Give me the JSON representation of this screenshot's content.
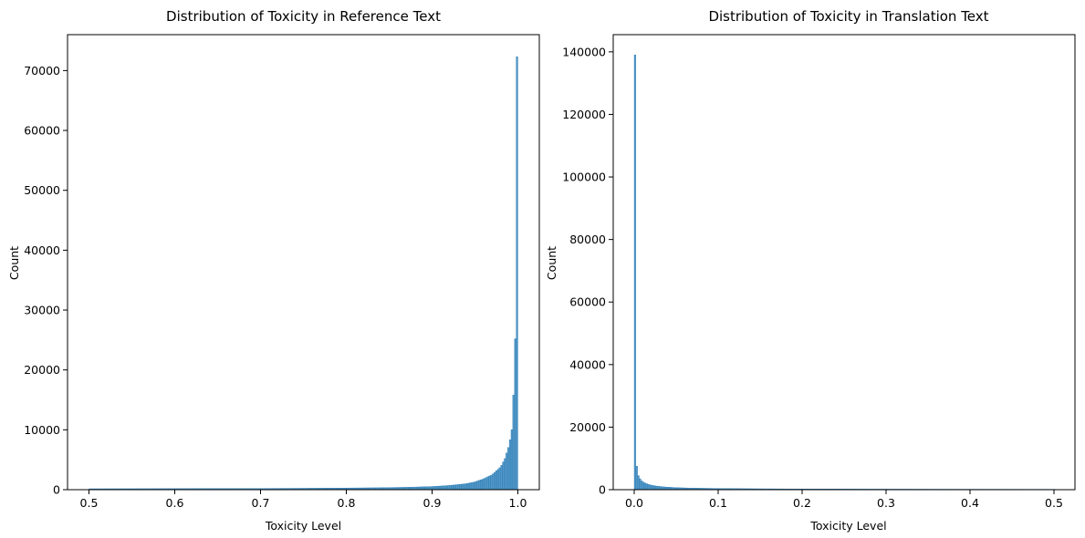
{
  "chart_data": [
    {
      "type": "bar",
      "subtype": "histogram",
      "title": "Distribution of Toxicity in Reference Text",
      "xlabel": "Toxicity Level",
      "ylabel": "Count",
      "xlim": [
        0.475,
        1.025
      ],
      "ylim": [
        0,
        76000
      ],
      "xticks": [
        0.5,
        0.6,
        0.7,
        0.8,
        0.9,
        1.0
      ],
      "xtick_labels": [
        "0.5",
        "0.6",
        "0.7",
        "0.8",
        "0.9",
        "1.0"
      ],
      "yticks": [
        0,
        10000,
        20000,
        30000,
        40000,
        50000,
        60000,
        70000
      ],
      "ytick_labels": [
        "0",
        "10000",
        "20000",
        "30000",
        "40000",
        "50000",
        "60000",
        "70000"
      ],
      "grid": false,
      "color": "#1f77b4",
      "bin_width": 0.002,
      "bins": [
        {
          "x": 0.5,
          "count": 150
        },
        {
          "x": 0.55,
          "count": 160
        },
        {
          "x": 0.6,
          "count": 175
        },
        {
          "x": 0.65,
          "count": 185
        },
        {
          "x": 0.7,
          "count": 200
        },
        {
          "x": 0.75,
          "count": 230
        },
        {
          "x": 0.8,
          "count": 280
        },
        {
          "x": 0.84,
          "count": 330
        },
        {
          "x": 0.87,
          "count": 400
        },
        {
          "x": 0.9,
          "count": 520
        },
        {
          "x": 0.92,
          "count": 700
        },
        {
          "x": 0.94,
          "count": 1000
        },
        {
          "x": 0.95,
          "count": 1300
        },
        {
          "x": 0.96,
          "count": 1800
        },
        {
          "x": 0.97,
          "count": 2500
        },
        {
          "x": 0.98,
          "count": 3800
        },
        {
          "x": 0.985,
          "count": 5200
        },
        {
          "x": 0.99,
          "count": 7500
        },
        {
          "x": 0.993,
          "count": 10000
        },
        {
          "x": 0.995,
          "count": 15800
        },
        {
          "x": 0.997,
          "count": 25200
        },
        {
          "x": 0.999,
          "count": 72300
        }
      ]
    },
    {
      "type": "bar",
      "subtype": "histogram",
      "title": "Distribution of Toxicity in Translation Text",
      "xlabel": "Toxicity Level",
      "ylabel": "Count",
      "xlim": [
        -0.025,
        0.525
      ],
      "ylim": [
        0,
        145500
      ],
      "xticks": [
        0.0,
        0.1,
        0.2,
        0.3,
        0.4,
        0.5
      ],
      "xtick_labels": [
        "0.0",
        "0.1",
        "0.2",
        "0.3",
        "0.4",
        "0.5"
      ],
      "yticks": [
        0,
        20000,
        40000,
        60000,
        80000,
        100000,
        120000,
        140000
      ],
      "ytick_labels": [
        "0",
        "20000",
        "40000",
        "60000",
        "80000",
        "100000",
        "120000",
        "140000"
      ],
      "grid": false,
      "color": "#1f77b4",
      "bin_width": 0.002,
      "bins": [
        {
          "x": 0.0,
          "count": 139000
        },
        {
          "x": 0.001,
          "count": 16500
        },
        {
          "x": 0.003,
          "count": 7500
        },
        {
          "x": 0.005,
          "count": 4500
        },
        {
          "x": 0.008,
          "count": 3000
        },
        {
          "x": 0.012,
          "count": 2200
        },
        {
          "x": 0.018,
          "count": 1600
        },
        {
          "x": 0.025,
          "count": 1200
        },
        {
          "x": 0.035,
          "count": 900
        },
        {
          "x": 0.05,
          "count": 650
        },
        {
          "x": 0.07,
          "count": 500
        },
        {
          "x": 0.1,
          "count": 380
        },
        {
          "x": 0.15,
          "count": 280
        },
        {
          "x": 0.2,
          "count": 220
        },
        {
          "x": 0.3,
          "count": 170
        },
        {
          "x": 0.4,
          "count": 140
        },
        {
          "x": 0.5,
          "count": 120
        }
      ]
    }
  ]
}
